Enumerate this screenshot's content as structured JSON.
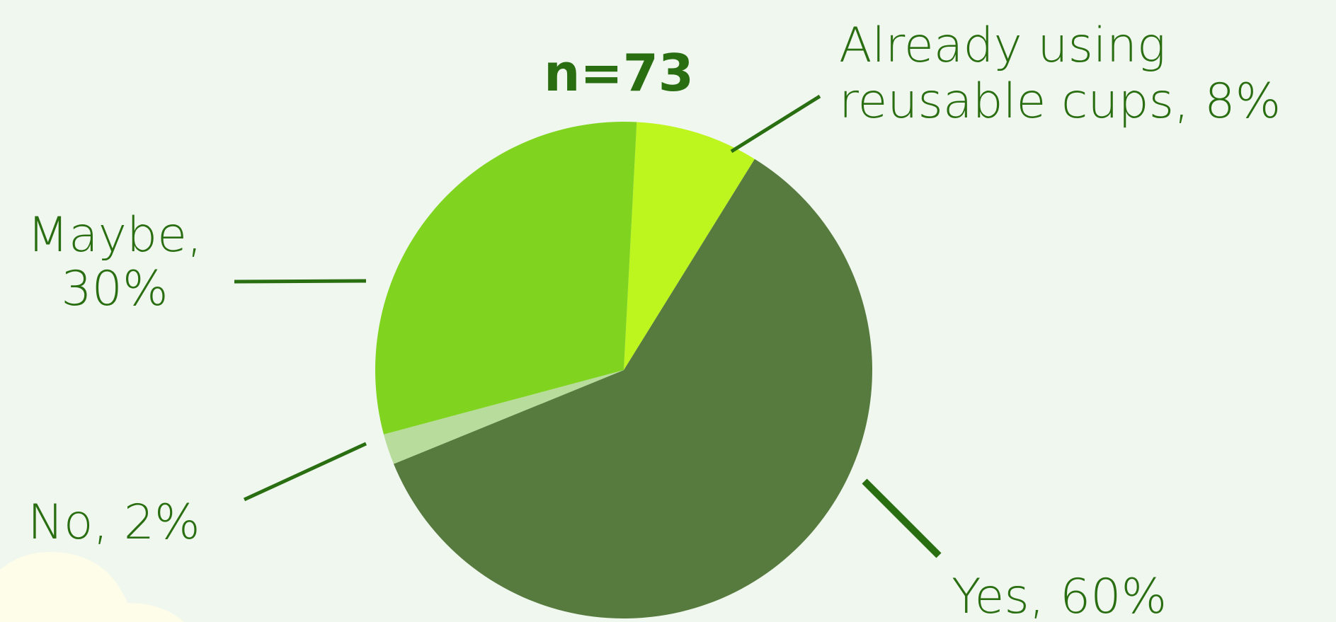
{
  "chart_data": {
    "type": "pie",
    "title": "n=73",
    "labels": [
      [
        "Already using",
        "reusable cups, 8%"
      ],
      [
        "Yes, 60%"
      ],
      [
        "No, 2%"
      ],
      [
        "Maybe,",
        "30%"
      ]
    ],
    "values": [
      8,
      60,
      2,
      30
    ],
    "colors": [
      "#bdf51e",
      "#577b3f",
      "#b8dc9c",
      "#80d41f"
    ]
  }
}
